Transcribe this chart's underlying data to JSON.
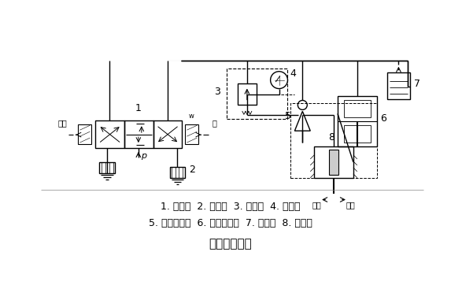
{
  "title": "夿具系统回路",
  "line1": "1. 换向阀  2. 消声器  3. 减压阀  4. 压力表",
  "line2": "5. 快速放气鄀  6. 气液增压器  7. 儲油器  8. 液压缸",
  "bg": "#ffffff",
  "lw": 1.0
}
